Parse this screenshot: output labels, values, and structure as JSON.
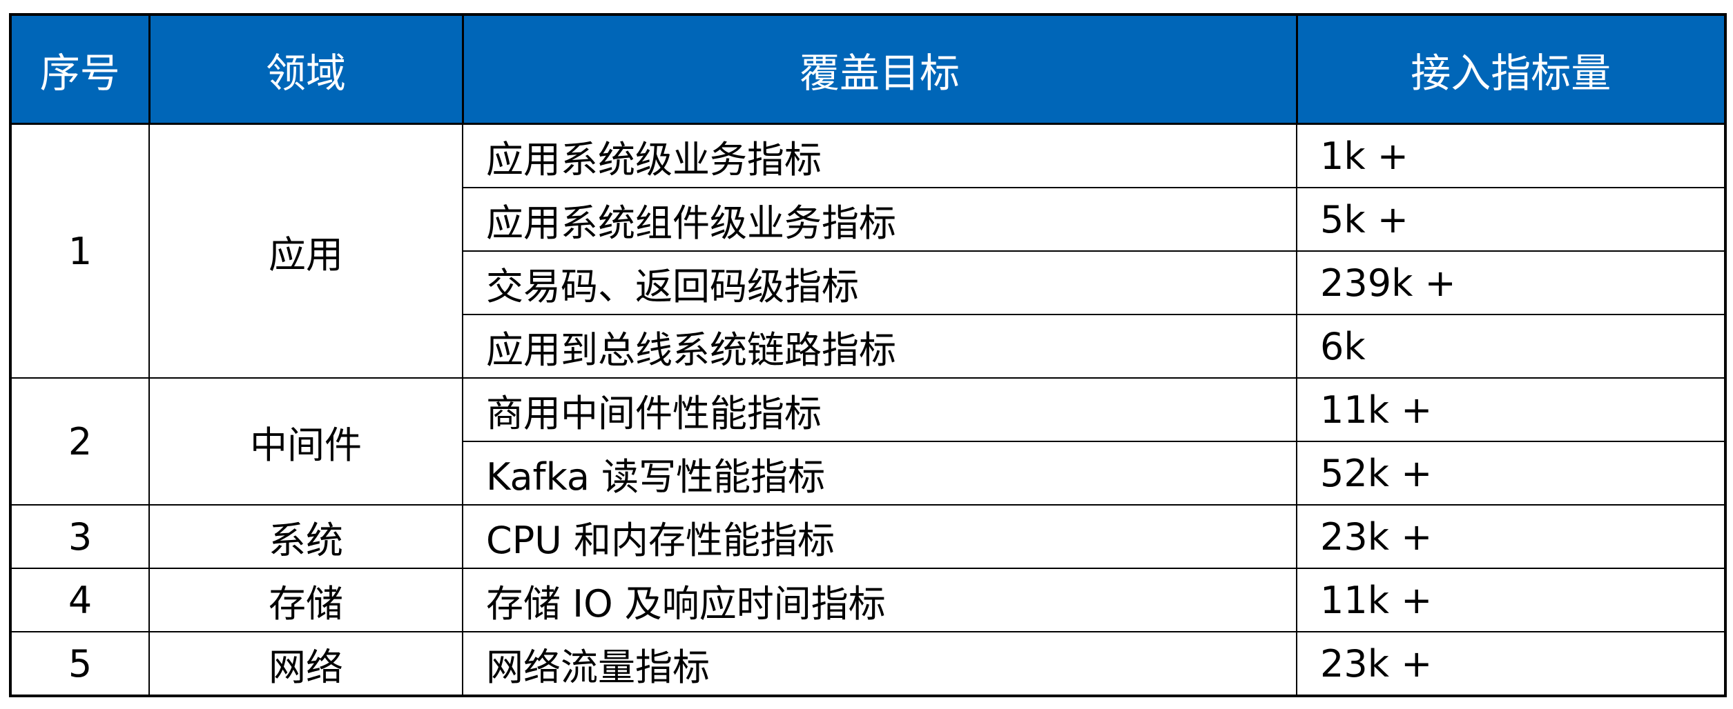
{
  "colors": {
    "header_bg": "#0066b8",
    "header_text": "#ffffff",
    "border": "#000000"
  },
  "headers": [
    "序号",
    "领域",
    "覆盖目标",
    "接入指标量"
  ],
  "groups": [
    {
      "index": "1",
      "domain": "应用",
      "rows": [
        {
          "target": "应用系统级业务指标",
          "count": "1k +"
        },
        {
          "target": "应用系统组件级业务指标",
          "count": "5k +"
        },
        {
          "target": "交易码、返回码级指标",
          "count": "239k +"
        },
        {
          "target": "应用到总线系统链路指标",
          "count": "6k"
        }
      ]
    },
    {
      "index": "2",
      "domain": "中间件",
      "rows": [
        {
          "target": "商用中间件性能指标",
          "count": "11k +"
        },
        {
          "target": "Kafka 读写性能指标",
          "count": "52k +"
        }
      ]
    },
    {
      "index": "3",
      "domain": "系统",
      "rows": [
        {
          "target": "CPU 和内存性能指标",
          "count": "23k +"
        }
      ]
    },
    {
      "index": "4",
      "domain": "存储",
      "rows": [
        {
          "target": "存储 IO 及响应时间指标",
          "count": "11k +"
        }
      ]
    },
    {
      "index": "5",
      "domain": "网络",
      "rows": [
        {
          "target": "网络流量指标",
          "count": "23k +"
        }
      ]
    }
  ]
}
